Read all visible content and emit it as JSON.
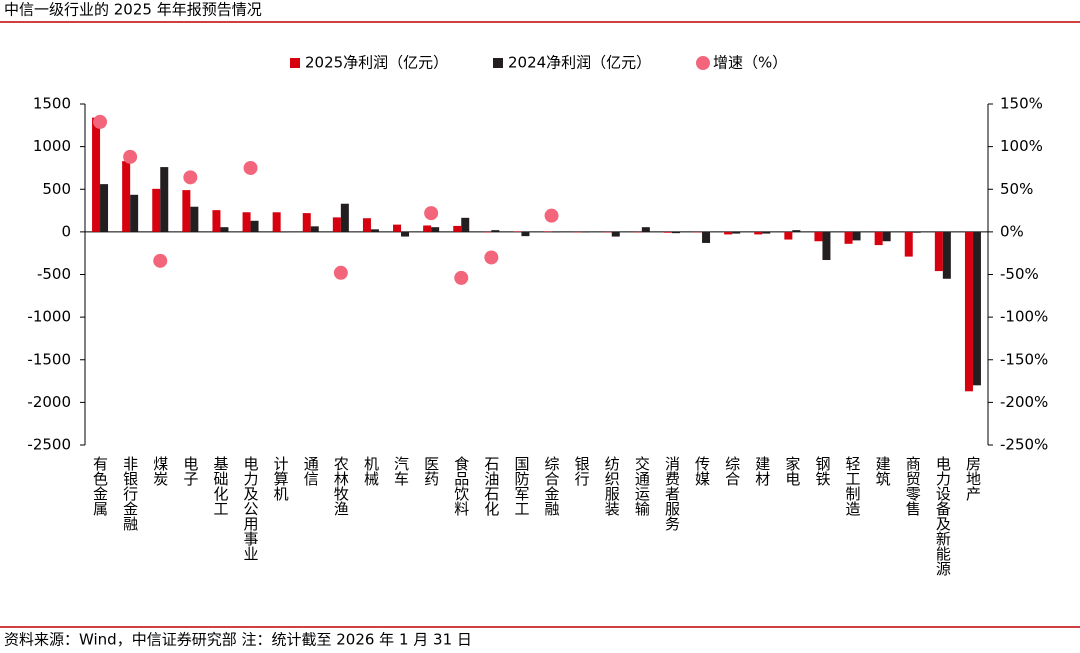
{
  "chart_data": {
    "type": "bar_dot",
    "title": "中信一级行业的 2025 年年报预告情况",
    "source": "资料来源：Wind，中信证券研究部 注：统计截至 2026 年 1 月 31 日",
    "categories": [
      "有色金属",
      "非银行金融",
      "煤炭",
      "电子",
      "基础化工",
      "电力及公用事业",
      "计算机",
      "通信",
      "农林牧渔",
      "机械",
      "汽车",
      "医药",
      "食品饮料",
      "石油石化",
      "国防军工",
      "综合金融",
      "银行",
      "纺织服装",
      "交通运输",
      "消费者服务",
      "传媒",
      "综合",
      "建材",
      "家电",
      "钢铁",
      "轻工制造",
      "建筑",
      "商贸零售",
      "电力设备及新能源",
      "房地产"
    ],
    "series": [
      {
        "name": "2025净利润（亿元）",
        "color": "#d7000f",
        "values": [
          1340,
          830,
          505,
          490,
          255,
          230,
          230,
          220,
          170,
          160,
          85,
          75,
          70,
          0,
          5,
          5,
          0,
          -5,
          0,
          -10,
          -5,
          -30,
          -30,
          -90,
          -110,
          -140,
          -155,
          -290,
          -460,
          -1870
        ]
      },
      {
        "name": "2024净利润（亿元）",
        "color": "#231f20",
        "values": [
          560,
          435,
          760,
          295,
          55,
          130,
          0,
          65,
          330,
          30,
          -55,
          55,
          165,
          20,
          -50,
          0,
          0,
          -55,
          55,
          -15,
          -130,
          -20,
          -20,
          20,
          -330,
          -100,
          -110,
          -10,
          -550,
          -1800
        ]
      },
      {
        "name": "增速（%）",
        "color": "#f2657a",
        "axis": "y2",
        "values": [
          129,
          88,
          -34,
          64,
          null,
          75,
          null,
          null,
          -48,
          null,
          null,
          22,
          -54,
          -30,
          null,
          19,
          null,
          null,
          null,
          null,
          null,
          null,
          null,
          null,
          null,
          null,
          null,
          null,
          null,
          null
        ]
      }
    ],
    "ylim": [
      -2500,
      1500
    ],
    "yticks": [
      1500,
      1000,
      500,
      0,
      -500,
      -1000,
      -1500,
      -2000,
      -2500
    ],
    "y2lim": [
      -250,
      150
    ],
    "y2ticks": [
      {
        "value": 150,
        "label": "150%"
      },
      {
        "value": 100,
        "label": "100%"
      },
      {
        "value": 50,
        "label": "50%"
      },
      {
        "value": 0,
        "label": "0%"
      },
      {
        "value": -50,
        "label": "-50%"
      },
      {
        "value": -100,
        "label": "-100%"
      },
      {
        "value": -150,
        "label": "-150%"
      },
      {
        "value": -200,
        "label": "-200%"
      },
      {
        "value": -250,
        "label": "-250%"
      }
    ],
    "legend": "top"
  }
}
